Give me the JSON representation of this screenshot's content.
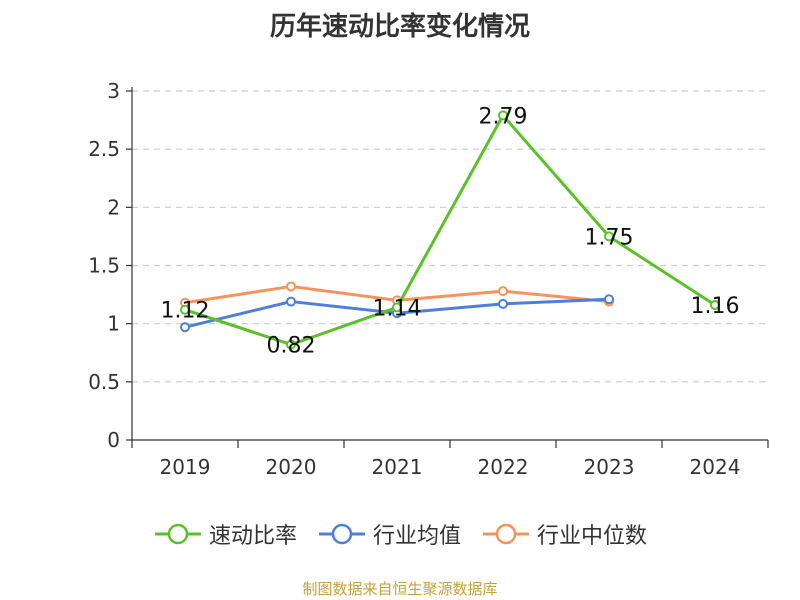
{
  "chart_data": {
    "type": "line",
    "title": "历年速动比率变化情况",
    "categories": [
      "2019",
      "2020",
      "2021",
      "2022",
      "2023",
      "2024"
    ],
    "ylim": [
      0,
      3
    ],
    "yticks": [
      "0",
      "0.5",
      "1",
      "1.5",
      "2",
      "2.5",
      "3"
    ],
    "grid": true,
    "legend_position": "bottom",
    "series": [
      {
        "name": "速动比率",
        "color": "#5bc12a",
        "values": [
          1.12,
          0.82,
          1.14,
          2.79,
          1.75,
          1.16
        ],
        "labels": [
          "1.12",
          "0.82",
          "1.14",
          "2.79",
          "1.75",
          "1.16"
        ]
      },
      {
        "name": "行业均值",
        "color": "#4f7fd8",
        "values": [
          0.97,
          1.19,
          1.09,
          1.17,
          1.21,
          null
        ]
      },
      {
        "name": "行业中位数",
        "color": "#f5935c",
        "values": [
          1.18,
          1.32,
          1.2,
          1.28,
          1.19,
          null
        ]
      }
    ]
  },
  "source": "制图数据来自恒生聚源数据库"
}
